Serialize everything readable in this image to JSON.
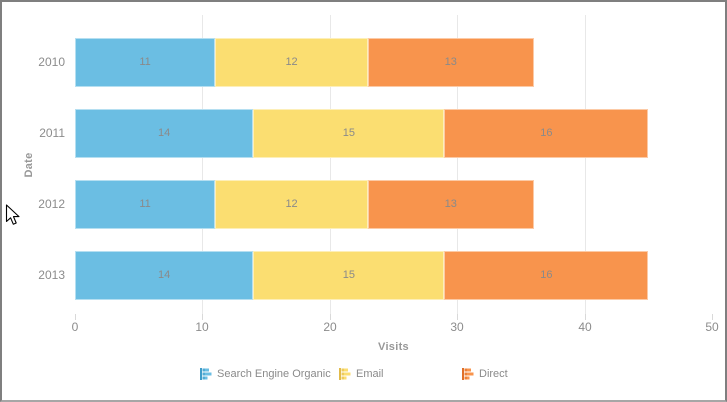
{
  "chart_data": {
    "type": "bar",
    "orientation": "horizontal",
    "stacked": true,
    "categories": [
      "2010",
      "2011",
      "2012",
      "2013"
    ],
    "series": [
      {
        "name": "Search Engine Organic",
        "color": "#6bbee3",
        "dark": "#3f9cc9",
        "values": [
          11,
          14,
          11,
          14
        ]
      },
      {
        "name": "Email",
        "color": "#fbde71",
        "dark": "#e2bb4a",
        "values": [
          12,
          15,
          12,
          15
        ]
      },
      {
        "name": "Direct",
        "color": "#f8944d",
        "dark": "#e06f28",
        "values": [
          13,
          16,
          13,
          16
        ]
      }
    ],
    "bar_value_labels": [
      [
        11,
        12,
        13
      ],
      [
        14,
        15,
        16
      ],
      [
        11,
        12,
        13
      ],
      [
        14,
        15,
        16
      ]
    ],
    "xlabel": "Visits",
    "ylabel": "Date",
    "xlim": [
      0,
      50
    ],
    "xticks": [
      0,
      10,
      20,
      30,
      40,
      50
    ],
    "xtick_labels": [
      "0",
      "10",
      "20",
      "30",
      "40",
      "50"
    ],
    "grid": true,
    "legend_position": "bottom",
    "legend_items": [
      "Search Engine Organic",
      "Email",
      "Direct"
    ]
  },
  "colors": {
    "frame_border": "#7f7f7f",
    "gridline": "#e8e8e8",
    "tick": "#d9d9d9",
    "text_gray": "#8c8c8c",
    "title_gray": "#989898",
    "background": "#ffffff"
  },
  "cursor": {
    "name": "arrow-pointer"
  }
}
